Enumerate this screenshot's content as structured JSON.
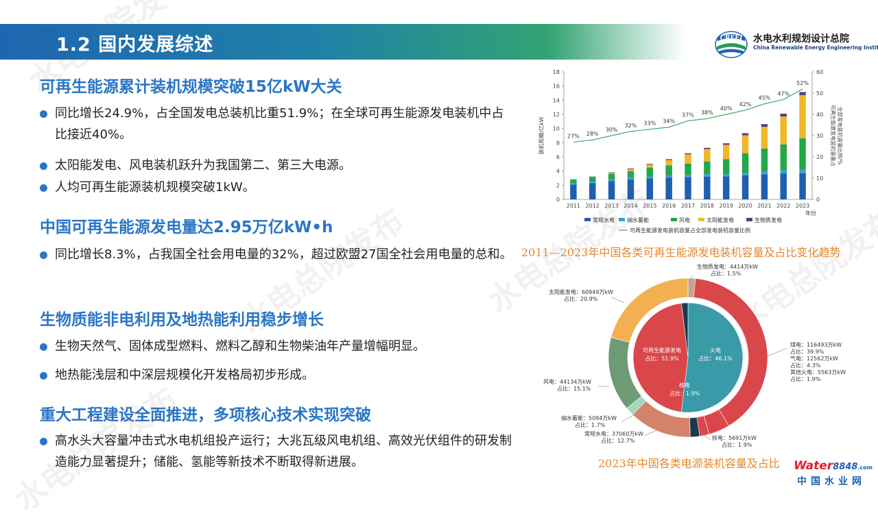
{
  "title": "1.2 国内发展综述",
  "logo": {
    "abbr": "CREEI",
    "cn": "水电水利规划设计总院",
    "en": "China Renewable Energy Engineering Institute"
  },
  "sections": [
    {
      "heading": "可再生能源累计装机规模突破15亿kW大关",
      "bullets": [
        "同比增长24.9%，占全国发电总装机比重51.9%；在全球可再生能源发电装机中占比接近40%。",
        "太阳能发电、风电装机跃升为我国第二、第三大电源。",
        "人均可再生能源装机规模突破1kW。"
      ]
    },
    {
      "heading": "中国可再生能源发电量达2.95万亿kW•h",
      "bullets": [
        "同比增长8.3%，占我国全社会用电量的32%，超过欧盟27国全社会用电量的总和。"
      ]
    },
    {
      "heading": "生物质能非电利用及地热能利用稳步增长",
      "bullets": [
        "生物天然气、固体成型燃料、燃料乙醇和生物柴油年产量增幅明显。",
        "地热能浅层和中深层规模化开发格局初步形成。"
      ]
    },
    {
      "heading": "重大工程建设全面推进，多项核心技术实现突破",
      "bullets": [
        "高水头大容量冲击式水电机组投产运行；大兆瓦级风电机组、高效光伏组件的研发制造能力显著提升；储能、氢能等新技术不断取得新进展。"
      ]
    }
  ],
  "chart_data": [
    {
      "type": "bar",
      "stacked": true,
      "caption": "2011—2023年中国各类可再生能源发电装机容量及占比变化趋势",
      "ylabel": "装机规模/亿kW",
      "y2label": "可再生能源发电装机容量占全部发电装机容量比例/%",
      "xlabel": "年份",
      "ylim": [
        0,
        18
      ],
      "yticks": [
        0,
        2,
        4,
        6,
        8,
        10,
        12,
        14,
        16,
        18
      ],
      "y2lim": [
        0,
        60
      ],
      "y2ticks": [
        0,
        10,
        20,
        30,
        40,
        50,
        60
      ],
      "categories": [
        "2011",
        "2012",
        "2013",
        "2014",
        "2015",
        "2016",
        "2017",
        "2018",
        "2019",
        "2020",
        "2021",
        "2022",
        "2023"
      ],
      "series": [
        {
          "name": "常规水电",
          "color": "#1f5fb0",
          "values": [
            2.1,
            2.3,
            2.6,
            2.8,
            2.97,
            3.05,
            3.13,
            3.22,
            3.26,
            3.4,
            3.55,
            3.67,
            3.71
          ]
        },
        {
          "name": "抽水蓄能",
          "color": "#3aa0e0",
          "values": [
            0.18,
            0.2,
            0.22,
            0.22,
            0.23,
            0.27,
            0.29,
            0.3,
            0.3,
            0.31,
            0.36,
            0.45,
            0.51
          ]
        },
        {
          "name": "风电",
          "color": "#22a84a",
          "values": [
            0.46,
            0.61,
            0.76,
            0.96,
            1.29,
            1.47,
            1.64,
            1.84,
            2.1,
            2.81,
            3.28,
            3.65,
            4.41
          ]
        },
        {
          "name": "太阳能发电",
          "color": "#f2b62a",
          "values": [
            0.02,
            0.03,
            0.15,
            0.28,
            0.42,
            0.77,
            1.3,
            1.74,
            2.04,
            2.53,
            3.06,
            3.93,
            6.09
          ]
        },
        {
          "name": "生物质发电",
          "color": "#5a3c8c",
          "values": [
            0.07,
            0.08,
            0.08,
            0.09,
            0.1,
            0.12,
            0.15,
            0.18,
            0.22,
            0.3,
            0.38,
            0.41,
            0.44
          ]
        }
      ],
      "line": {
        "name": "可再生能源发电装机容量占全部发电装机容量比例",
        "color": "#3cab5a",
        "values": [
          27,
          28,
          30,
          32,
          33,
          34,
          37,
          38,
          40,
          42,
          45,
          47,
          52
        ],
        "labels": [
          "27%",
          "28%",
          "30%",
          "32%",
          "33%",
          "34%",
          "37%",
          "38%",
          "40%",
          "42%",
          "45%",
          "47%",
          "52%"
        ]
      },
      "legend": "bottom"
    },
    {
      "type": "pie",
      "caption": "2023年中国各类电源装机容量及占比",
      "inner": [
        {
          "name": "可再生能源发电",
          "share": 51.9,
          "color": "#3b9aa8",
          "label": "可再生能源发电",
          "sub": "占比：51.9%"
        },
        {
          "name": "火电",
          "share": 46.1,
          "color": "#d9474a",
          "label": "火电",
          "sub": "占比：46.1%"
        },
        {
          "name": "核电",
          "share": 1.9,
          "color": "#1b3a4b",
          "label": "核电",
          "sub": "占比：1.9%"
        }
      ],
      "outer": [
        {
          "name": "生物质发电",
          "share": 1.5,
          "color": "#c9a090"
        },
        {
          "name": "煤电",
          "share": 39.9,
          "color": "#d9474a"
        },
        {
          "name": "气电",
          "share": 4.3,
          "color": "#d9474a"
        },
        {
          "name": "其他火电",
          "share": 1.9,
          "color": "#d9474a"
        },
        {
          "name": "核电",
          "share": 1.9,
          "color": "#1b3a4b"
        },
        {
          "name": "常规水电",
          "share": 12.7,
          "color": "#d5826a"
        },
        {
          "name": "抽水蓄能",
          "share": 1.7,
          "color": "#a5d6be"
        },
        {
          "name": "风电",
          "share": 15.1,
          "color": "#6e9a76"
        },
        {
          "name": "太阳能发电",
          "share": 20.9,
          "color": "#f2b050"
        }
      ],
      "labels": [
        {
          "l1": "生物质发电：4414万kW",
          "l2": "占比：1.5%"
        },
        {
          "l1": "太阳能发电：60949万kW",
          "l2": "占比：20.9%"
        },
        {
          "l1": "煤电：116493万kW",
          "l2": "占比：39.9%",
          "l3": "气电：12562万kW",
          "l4": "占比：4.3%",
          "l5": "其他火电：5563万kW",
          "l6": "占比：1.9%"
        },
        {
          "l1": "风电：44134万kW",
          "l2": "占比：15.1%"
        },
        {
          "l1": "抽水蓄能：5094万kW",
          "l2": "占比：1.7%"
        },
        {
          "l1": "常规水电：37060万kW",
          "l2": "占比：12.7%"
        },
        {
          "l1": "核电：5691万kW",
          "l2": "占比：1.9%"
        }
      ]
    }
  ],
  "footer_logo": {
    "brand": "Water",
    "num": "8848",
    "dotcom": ".com",
    "cn": "中国水业网"
  },
  "watermark": "水电总院发布",
  "colors": {
    "accent": "#2a76c6",
    "caption": "#e4882e"
  }
}
